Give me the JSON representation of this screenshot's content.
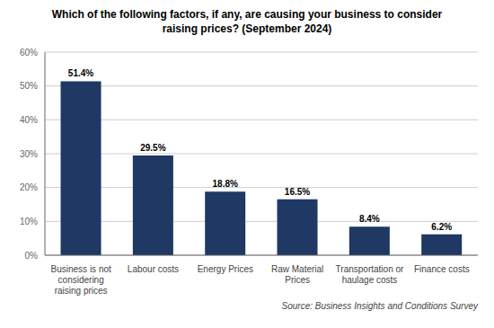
{
  "chart_data": {
    "type": "bar",
    "title": "Which of the following factors, if any, are causing your business to consider\nraising prices? (September 2024)",
    "categories": [
      "Business is not\nconsidering\nraising prices",
      "Labour costs",
      "Energy Prices",
      "Raw Material\nPrices",
      "Transportation or\nhaulage costs",
      "Finance costs"
    ],
    "values": [
      51.4,
      29.5,
      18.8,
      16.5,
      8.4,
      6.2
    ],
    "value_labels": [
      "51.4%",
      "29.5%",
      "18.8%",
      "16.5%",
      "8.4%",
      "6.2%"
    ],
    "data_labels": true,
    "color": "#1F3864",
    "ylim": [
      0,
      60
    ],
    "yticks": [
      {
        "value": 0,
        "label": "0%"
      },
      {
        "value": 10,
        "label": "10%"
      },
      {
        "value": 20,
        "label": "20%"
      },
      {
        "value": 30,
        "label": "30%"
      },
      {
        "value": 40,
        "label": "40%"
      },
      {
        "value": 50,
        "label": "50%"
      },
      {
        "value": 60,
        "label": "60%"
      }
    ],
    "grid": true,
    "annotations": [
      "Source: Business Insights and Conditions Survey"
    ]
  }
}
